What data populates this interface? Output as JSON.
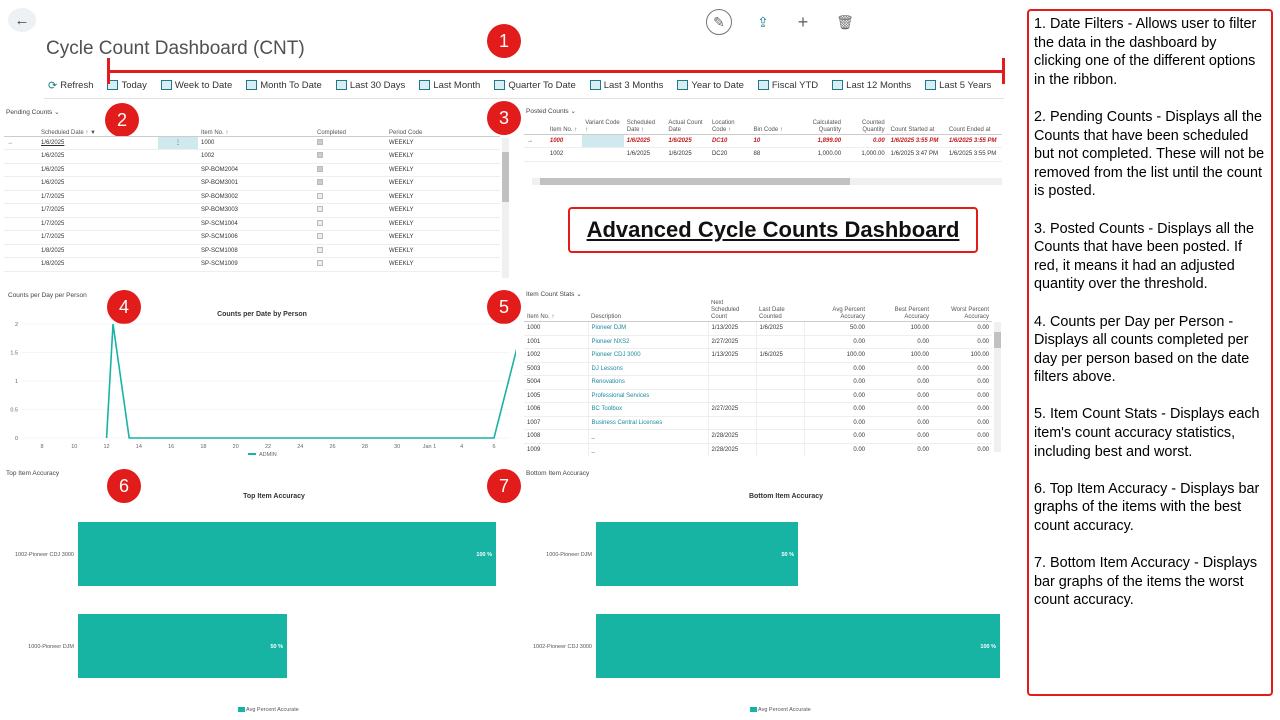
{
  "header": {
    "title": "Cycle Count Dashboard (CNT)",
    "back_icon": "back-arrow-icon"
  },
  "ribbon": [
    {
      "label": "Refresh",
      "icon": "refresh-icon"
    },
    {
      "label": "Today",
      "icon": "calendar-icon"
    },
    {
      "label": "Week to Date",
      "icon": "calendar-icon"
    },
    {
      "label": "Month To Date",
      "icon": "calendar-icon"
    },
    {
      "label": "Last 30 Days",
      "icon": "calendar-icon"
    },
    {
      "label": "Last Month",
      "icon": "calendar-icon"
    },
    {
      "label": "Quarter To Date",
      "icon": "calendar-icon"
    },
    {
      "label": "Last 3 Months",
      "icon": "calendar-icon"
    },
    {
      "label": "Year to Date",
      "icon": "calendar-icon"
    },
    {
      "label": "Fiscal YTD",
      "icon": "calendar-icon"
    },
    {
      "label": "Last 12 Months",
      "icon": "calendar-icon"
    },
    {
      "label": "Last 5 Years",
      "icon": "calendar-icon"
    }
  ],
  "badges": [
    "1",
    "2",
    "3",
    "4",
    "5",
    "6",
    "7"
  ],
  "pending": {
    "title": "Pending Counts",
    "columns": [
      "Scheduled Date ↑",
      "Item No. ↑",
      "Completed",
      "Period Code"
    ],
    "rows": [
      {
        "date": "1/6/2025",
        "item": "1000",
        "completed": true,
        "period": "WEEKLY"
      },
      {
        "date": "1/6/2025",
        "item": "1002",
        "completed": true,
        "period": "WEEKLY"
      },
      {
        "date": "1/6/2025",
        "item": "SP-BOM2004",
        "completed": true,
        "period": "WEEKLY"
      },
      {
        "date": "1/6/2025",
        "item": "SP-BOM3001",
        "completed": true,
        "period": "WEEKLY"
      },
      {
        "date": "1/7/2025",
        "item": "SP-BOM3002",
        "completed": false,
        "period": "WEEKLY"
      },
      {
        "date": "1/7/2025",
        "item": "SP-BOM3003",
        "completed": false,
        "period": "WEEKLY"
      },
      {
        "date": "1/7/2025",
        "item": "SP-SCM1004",
        "completed": false,
        "period": "WEEKLY"
      },
      {
        "date": "1/7/2025",
        "item": "SP-SCM1006",
        "completed": false,
        "period": "WEEKLY"
      },
      {
        "date": "1/8/2025",
        "item": "SP-SCM1008",
        "completed": false,
        "period": "WEEKLY"
      },
      {
        "date": "1/8/2025",
        "item": "SP-SCM1009",
        "completed": false,
        "period": "WEEKLY"
      }
    ]
  },
  "posted": {
    "title": "Posted Counts",
    "columns": [
      "Item No. ↑",
      "Variant Code ↑",
      "Scheduled Date ↑",
      "Actual Count Date",
      "Location Code ↑",
      "Bin Code ↑",
      "Calculated Quantity",
      "Counted Quantity",
      "Count Started at",
      "Count Ended at"
    ],
    "rows": [
      {
        "item": "1000",
        "variant": "",
        "sched": "1/6/2025",
        "actual": "1/6/2025",
        "loc": "DC10",
        "bin": "10",
        "calc": "1,899.00",
        "counted": "0.00",
        "start": "1/6/2025 3:55 PM",
        "end": "1/6/2025 3:55 PM",
        "red": true
      },
      {
        "item": "1002",
        "variant": "",
        "sched": "1/6/2025",
        "actual": "1/6/2025",
        "loc": "DC20",
        "bin": "88",
        "calc": "1,000.00",
        "counted": "1,000.00",
        "start": "1/6/2025 3:47 PM",
        "end": "1/6/2025 3:55 PM",
        "red": false
      }
    ]
  },
  "banner": "Advanced Cycle Counts Dashboard",
  "counts_chart": {
    "section_title": "Counts per Day per Person",
    "chart_title": "Counts per Date by Person",
    "legend": "ADMIN"
  },
  "item_stats": {
    "title": "Item Count Stats",
    "columns": [
      "Item No. ↑",
      "Description",
      "Next Scheduled Count",
      "Last Date Counted",
      "Avg Percent Accuracy",
      "Best Percent Accuracy",
      "Worst Percent Accuracy"
    ],
    "rows": [
      [
        "1000",
        "Pioneer DJM",
        "1/13/2025",
        "1/6/2025",
        "50.00",
        "100.00",
        "0.00"
      ],
      [
        "1001",
        "Pioneer NXS2",
        "2/27/2025",
        "",
        "0.00",
        "0.00",
        "0.00"
      ],
      [
        "1002",
        "Pioneer CDJ 3000",
        "1/13/2025",
        "1/6/2025",
        "100.00",
        "100.00",
        "100.00"
      ],
      [
        "5003",
        "DJ Lessons",
        "",
        "",
        "0.00",
        "0.00",
        "0.00"
      ],
      [
        "5004",
        "Renovations",
        "",
        "",
        "0.00",
        "0.00",
        "0.00"
      ],
      [
        "1005",
        "Professional Services",
        "",
        "",
        "0.00",
        "0.00",
        "0.00"
      ],
      [
        "1006",
        "BC Toolbox",
        "2/27/2025",
        "",
        "0.00",
        "0.00",
        "0.00"
      ],
      [
        "1007",
        "Business Central Licenses",
        "",
        "",
        "0.00",
        "0.00",
        "0.00"
      ],
      [
        "1008",
        "_",
        "2/28/2025",
        "",
        "0.00",
        "0.00",
        "0.00"
      ],
      [
        "1009",
        "_",
        "2/28/2025",
        "",
        "0.00",
        "0.00",
        "0.00"
      ]
    ]
  },
  "top_accuracy": {
    "section_title": "Top Item Accuracy",
    "chart_title": "Top Item Accuracy",
    "legend": "Avg Percent Accurate"
  },
  "bottom_accuracy": {
    "section_title": "Bottom Item Accuracy",
    "chart_title": "Bottom Item Accuracy",
    "legend": "Avg Percent Accurate"
  },
  "notes": [
    "1. Date Filters - Allows user to filter the data in the dashboard by clicking one of the different options in the ribbon.",
    "2. Pending Counts - Displays all the Counts that have been scheduled but not completed. These will not be removed from the list until the count is posted.",
    "3. Posted Counts - Displays all the Counts that have been posted. If red, it means it had an adjusted quantity over the threshold.",
    "4. Counts per Day per Person - Displays all counts completed per day per person based on the date filters above.",
    "5. Item Count Stats - Displays each item's count accuracy statistics, including best and worst.",
    "6. Top Item Accuracy - Displays bar graphs of the items with the best count accuracy.",
    "7. Bottom Item Accuracy - Displays bar graphs of the items the worst count accuracy."
  ],
  "colors": {
    "accent": "#1c8a9c",
    "bar": "#17b3a3",
    "annotation": "#e21b1b"
  },
  "chart_data": [
    {
      "type": "line",
      "title": "Counts per Date by Person",
      "x": [
        "8",
        "10",
        "12",
        "14",
        "16",
        "18",
        "20",
        "22",
        "24",
        "26",
        "28",
        "30",
        "Jan 1",
        "4",
        "6"
      ],
      "series": [
        {
          "name": "ADMIN",
          "points": [
            [
              2,
              0
            ],
            [
              2.2,
              2
            ],
            [
              2.7,
              0
            ],
            [
              14,
              0
            ],
            [
              14.9,
              2
            ]
          ]
        }
      ],
      "ylim": [
        0,
        2
      ],
      "yticks": [
        "0",
        "0.5",
        "1",
        "1.5",
        "2"
      ]
    },
    {
      "type": "bar",
      "title": "Top Item Accuracy",
      "categories": [
        "1002-Pioneer CDJ 3000",
        "1000-Pioneer DJM"
      ],
      "values": [
        100,
        50
      ],
      "labels": [
        "100 %",
        "50 %"
      ],
      "legend": "Avg Percent Accurate"
    },
    {
      "type": "bar",
      "title": "Bottom Item Accuracy",
      "categories": [
        "1000-Pioneer DJM",
        "1002-Pioneer CDJ 3000"
      ],
      "values": [
        50,
        100
      ],
      "labels": [
        "50 %",
        "100 %"
      ],
      "legend": "Avg Percent Accurate"
    }
  ]
}
